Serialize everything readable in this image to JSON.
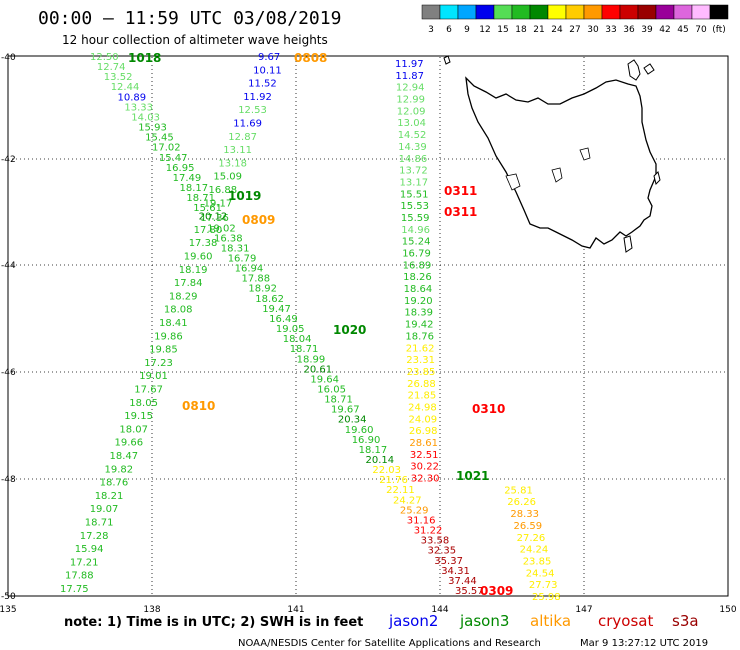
{
  "title": "00:00 – 11:59 UTC 03/08/2019",
  "subtitle": "12 hour collection of altimeter wave heights",
  "legend": {
    "bins": [
      {
        "label": "3",
        "color": "#808080"
      },
      {
        "label": "6",
        "color": "#00e5ff"
      },
      {
        "label": "9",
        "color": "#00a6ff"
      },
      {
        "label": "12",
        "color": "#0000ee"
      },
      {
        "label": "15",
        "color": "#55dd55"
      },
      {
        "label": "18",
        "color": "#22bb22"
      },
      {
        "label": "21",
        "color": "#008800"
      },
      {
        "label": "24",
        "color": "#ffff00"
      },
      {
        "label": "27",
        "color": "#ffcc00"
      },
      {
        "label": "30",
        "color": "#ff9900"
      },
      {
        "label": "33",
        "color": "#ff0000"
      },
      {
        "label": "36",
        "color": "#cc0000"
      },
      {
        "label": "39",
        "color": "#990000"
      },
      {
        "label": "42",
        "color": "#990099"
      },
      {
        "label": "45",
        "color": "#dd66dd"
      },
      {
        "label": "70",
        "color": "#ffbbff"
      },
      {
        "label": "(ft)",
        "color": "#000000"
      }
    ]
  },
  "axes": {
    "lat_labels": [
      "-40",
      "-42",
      "-44",
      "-46",
      "-48",
      "-50"
    ],
    "lon_labels": [
      "135",
      "138",
      "141",
      "144",
      "147",
      "150"
    ]
  },
  "note": "note: 1) Time is in UTC; 2) SWH is in feet",
  "satellites": [
    {
      "name": "jason2",
      "color": "#0000ee"
    },
    {
      "name": "jason3",
      "color": "#008800"
    },
    {
      "name": "altika",
      "color": "#ff9900"
    },
    {
      "name": "cryosat",
      "color": "#cc0000"
    },
    {
      "name": "s3a",
      "color": "#990000"
    }
  ],
  "footer_left": "NOAA/NESDIS Center for Satellite Applications and Research",
  "footer_right": "Mar  9 13:27:12 UTC 2019",
  "palette": {
    "lb": "#0000ee",
    "lg": "#66dd66",
    "mg": "#22bb22",
    "dg": "#008800",
    "yl": "#ffee00",
    "or": "#ff9900",
    "rd": "#ff0000",
    "dr": "#aa0000"
  },
  "markers": [
    {
      "text": "1018",
      "color": "#008800"
    },
    {
      "text": "1019",
      "color": "#008800"
    },
    {
      "text": "1020",
      "color": "#008800"
    },
    {
      "text": "1021",
      "color": "#008800"
    },
    {
      "text": "0808",
      "color": "#ff9900"
    },
    {
      "text": "0809",
      "color": "#ff9900"
    },
    {
      "text": "0810",
      "color": "#ff9900"
    },
    {
      "text": "0311",
      "color": "#ff0000"
    },
    {
      "text": "0311",
      "color": "#ff0000"
    },
    {
      "text": "0310",
      "color": "#ff0000"
    },
    {
      "text": "0309",
      "color": "#ff0000"
    }
  ],
  "tracks": [
    {
      "name": "track-a",
      "values": [
        {
          "v": "12.50",
          "c": "lg"
        },
        {
          "v": "12.74",
          "c": "lg"
        },
        {
          "v": "13.52",
          "c": "lg"
        },
        {
          "v": "12.44",
          "c": "lg"
        },
        {
          "v": "10.89",
          "c": "lb"
        },
        {
          "v": "13.33",
          "c": "lg"
        },
        {
          "v": "14.03",
          "c": "lg"
        },
        {
          "v": "15.93",
          "c": "mg"
        },
        {
          "v": "15.45",
          "c": "mg"
        },
        {
          "v": "17.02",
          "c": "mg"
        },
        {
          "v": "15.47",
          "c": "mg"
        },
        {
          "v": "16.95",
          "c": "mg"
        },
        {
          "v": "17.49",
          "c": "mg"
        },
        {
          "v": "18.17",
          "c": "mg"
        },
        {
          "v": "18.71",
          "c": "mg"
        },
        {
          "v": "15.61",
          "c": "mg"
        },
        {
          "v": "17.36",
          "c": "mg"
        },
        {
          "v": "19.02",
          "c": "mg"
        },
        {
          "v": "16.38",
          "c": "mg"
        },
        {
          "v": "18.31",
          "c": "mg"
        },
        {
          "v": "16.79",
          "c": "mg"
        },
        {
          "v": "16.94",
          "c": "mg"
        },
        {
          "v": "17.88",
          "c": "mg"
        },
        {
          "v": "18.92",
          "c": "mg"
        },
        {
          "v": "18.62",
          "c": "mg"
        },
        {
          "v": "19.47",
          "c": "mg"
        },
        {
          "v": "16.49",
          "c": "mg"
        },
        {
          "v": "19.05",
          "c": "mg"
        },
        {
          "v": "18.04",
          "c": "mg"
        },
        {
          "v": "18.71",
          "c": "mg"
        },
        {
          "v": "18.99",
          "c": "mg"
        },
        {
          "v": "20.61",
          "c": "dg"
        },
        {
          "v": "19.64",
          "c": "mg"
        },
        {
          "v": "16.05",
          "c": "mg"
        },
        {
          "v": "18.71",
          "c": "mg"
        },
        {
          "v": "19.67",
          "c": "mg"
        },
        {
          "v": "20.34",
          "c": "dg"
        },
        {
          "v": "19.60",
          "c": "mg"
        },
        {
          "v": "16.90",
          "c": "mg"
        },
        {
          "v": "18.17",
          "c": "mg"
        },
        {
          "v": "20.14",
          "c": "dg"
        },
        {
          "v": "22.03",
          "c": "yl"
        },
        {
          "v": "21.76",
          "c": "yl"
        },
        {
          "v": "22.11",
          "c": "yl"
        },
        {
          "v": "24.27",
          "c": "yl"
        },
        {
          "v": "25.29",
          "c": "or"
        },
        {
          "v": "31.16",
          "c": "rd"
        },
        {
          "v": "31.22",
          "c": "rd"
        },
        {
          "v": "33.58",
          "c": "dr"
        },
        {
          "v": "32.35",
          "c": "dr"
        },
        {
          "v": "35.37",
          "c": "dr"
        },
        {
          "v": "34.31",
          "c": "dr"
        },
        {
          "v": "37.44",
          "c": "dr"
        },
        {
          "v": "35.57",
          "c": "dr"
        }
      ]
    },
    {
      "name": "track-b",
      "values": [
        {
          "v": "9.67",
          "c": "lb"
        },
        {
          "v": "10.11",
          "c": "lb"
        },
        {
          "v": "11.52",
          "c": "lb"
        },
        {
          "v": "11.92",
          "c": "lb"
        },
        {
          "v": "12.53",
          "c": "lg"
        },
        {
          "v": "11.69",
          "c": "lb"
        },
        {
          "v": "12.87",
          "c": "lg"
        },
        {
          "v": "13.11",
          "c": "lg"
        },
        {
          "v": "13.18",
          "c": "lg"
        },
        {
          "v": "15.09",
          "c": "mg"
        },
        {
          "v": "16.88",
          "c": "mg"
        },
        {
          "v": "19.17",
          "c": "mg"
        },
        {
          "v": "20.12",
          "c": "dg"
        },
        {
          "v": "17.80",
          "c": "mg"
        },
        {
          "v": "17.38",
          "c": "mg"
        },
        {
          "v": "19.60",
          "c": "mg"
        },
        {
          "v": "18.19",
          "c": "mg"
        },
        {
          "v": "17.84",
          "c": "mg"
        },
        {
          "v": "18.29",
          "c": "mg"
        },
        {
          "v": "18.08",
          "c": "mg"
        },
        {
          "v": "18.41",
          "c": "mg"
        },
        {
          "v": "19.86",
          "c": "mg"
        },
        {
          "v": "19.85",
          "c": "mg"
        },
        {
          "v": "17.23",
          "c": "mg"
        },
        {
          "v": "19.01",
          "c": "mg"
        },
        {
          "v": "17.67",
          "c": "mg"
        },
        {
          "v": "18.05",
          "c": "mg"
        },
        {
          "v": "19.15",
          "c": "mg"
        },
        {
          "v": "18.07",
          "c": "mg"
        },
        {
          "v": "19.66",
          "c": "mg"
        },
        {
          "v": "18.47",
          "c": "mg"
        },
        {
          "v": "19.82",
          "c": "mg"
        },
        {
          "v": "18.76",
          "c": "mg"
        },
        {
          "v": "18.21",
          "c": "mg"
        },
        {
          "v": "19.07",
          "c": "mg"
        },
        {
          "v": "18.71",
          "c": "mg"
        },
        {
          "v": "17.28",
          "c": "mg"
        },
        {
          "v": "15.94",
          "c": "mg"
        },
        {
          "v": "17.21",
          "c": "mg"
        },
        {
          "v": "17.88",
          "c": "mg"
        },
        {
          "v": "17.75",
          "c": "mg"
        }
      ]
    },
    {
      "name": "track-c",
      "values": [
        {
          "v": "11.97",
          "c": "lb"
        },
        {
          "v": "11.87",
          "c": "lb"
        },
        {
          "v": "12.94",
          "c": "lg"
        },
        {
          "v": "12.99",
          "c": "lg"
        },
        {
          "v": "12.09",
          "c": "lg"
        },
        {
          "v": "13.04",
          "c": "lg"
        },
        {
          "v": "14.52",
          "c": "lg"
        },
        {
          "v": "14.39",
          "c": "lg"
        },
        {
          "v": "14.86",
          "c": "lg"
        },
        {
          "v": "13.72",
          "c": "lg"
        },
        {
          "v": "13.17",
          "c": "lg"
        },
        {
          "v": "15.51",
          "c": "mg"
        },
        {
          "v": "15.53",
          "c": "mg"
        },
        {
          "v": "15.59",
          "c": "mg"
        },
        {
          "v": "14.96",
          "c": "lg"
        },
        {
          "v": "15.24",
          "c": "mg"
        },
        {
          "v": "16.79",
          "c": "mg"
        },
        {
          "v": "16.89",
          "c": "mg"
        },
        {
          "v": "18.26",
          "c": "mg"
        },
        {
          "v": "18.64",
          "c": "mg"
        },
        {
          "v": "19.20",
          "c": "mg"
        },
        {
          "v": "18.39",
          "c": "mg"
        },
        {
          "v": "19.42",
          "c": "mg"
        },
        {
          "v": "18.76",
          "c": "mg"
        },
        {
          "v": "21.62",
          "c": "yl"
        },
        {
          "v": "23.31",
          "c": "yl"
        },
        {
          "v": "23.85",
          "c": "yl"
        },
        {
          "v": "26.88",
          "c": "yl"
        },
        {
          "v": "21.85",
          "c": "yl"
        },
        {
          "v": "24.98",
          "c": "yl"
        },
        {
          "v": "24.09",
          "c": "yl"
        },
        {
          "v": "26.98",
          "c": "yl"
        },
        {
          "v": "28.61",
          "c": "or"
        },
        {
          "v": "32.51",
          "c": "rd"
        },
        {
          "v": "30.22",
          "c": "rd"
        },
        {
          "v": "32.30",
          "c": "rd"
        },
        {
          "v": "25.81",
          "c": "yl"
        },
        {
          "v": "26.26",
          "c": "yl"
        },
        {
          "v": "28.33",
          "c": "or"
        },
        {
          "v": "26.59",
          "c": "or"
        },
        {
          "v": "27.26",
          "c": "yl"
        },
        {
          "v": "24.24",
          "c": "yl"
        },
        {
          "v": "23.85",
          "c": "yl"
        },
        {
          "v": "24.54",
          "c": "yl"
        },
        {
          "v": "27.73",
          "c": "yl"
        },
        {
          "v": "25.98",
          "c": "yl"
        }
      ]
    }
  ]
}
